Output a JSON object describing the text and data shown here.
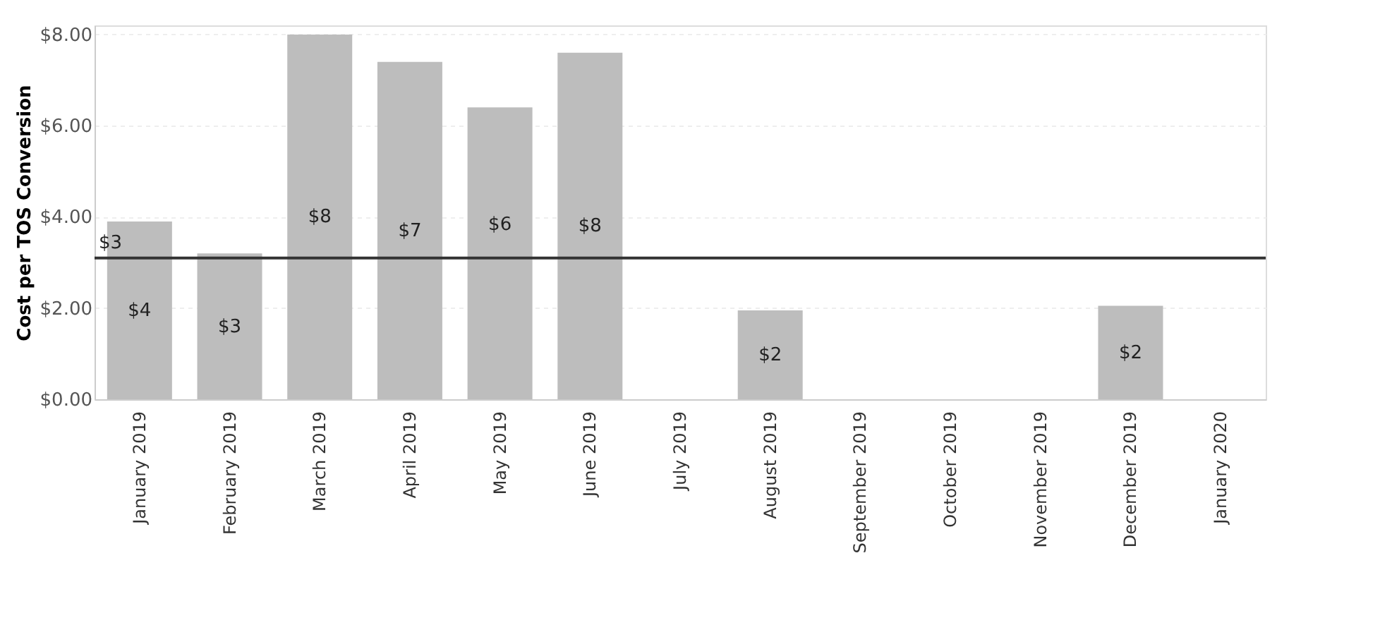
{
  "chart_data": {
    "type": "bar",
    "ylabel": "Cost per TOS Conversion",
    "categories": [
      "January 2019",
      "February 2019",
      "March 2019",
      "April 2019",
      "May 2019",
      "June 2019",
      "July 2019",
      "August 2019",
      "September 2019",
      "October 2019",
      "November 2019",
      "December 2019",
      "January 2020"
    ],
    "values": [
      3.9,
      3.2,
      8.0,
      7.4,
      6.4,
      7.6,
      null,
      1.95,
      null,
      null,
      null,
      2.05,
      null
    ],
    "value_labels": [
      "$4",
      "$3",
      "$8",
      "$7",
      "$6",
      "$8",
      null,
      "$2",
      null,
      null,
      null,
      "$2",
      null
    ],
    "color": "#bdbdbd",
    "ylim": [
      0,
      8.2
    ],
    "yticks": [
      {
        "value": 0,
        "label": "$0.00"
      },
      {
        "value": 2,
        "label": "$2.00"
      },
      {
        "value": 4,
        "label": "$4.00"
      },
      {
        "value": 6,
        "label": "$6.00"
      },
      {
        "value": 8,
        "label": "$8.00"
      }
    ],
    "grid": "y",
    "ref_lines": [
      {
        "axis": "y",
        "value": 3.1,
        "label": "$3",
        "color": "#333333"
      }
    ]
  }
}
